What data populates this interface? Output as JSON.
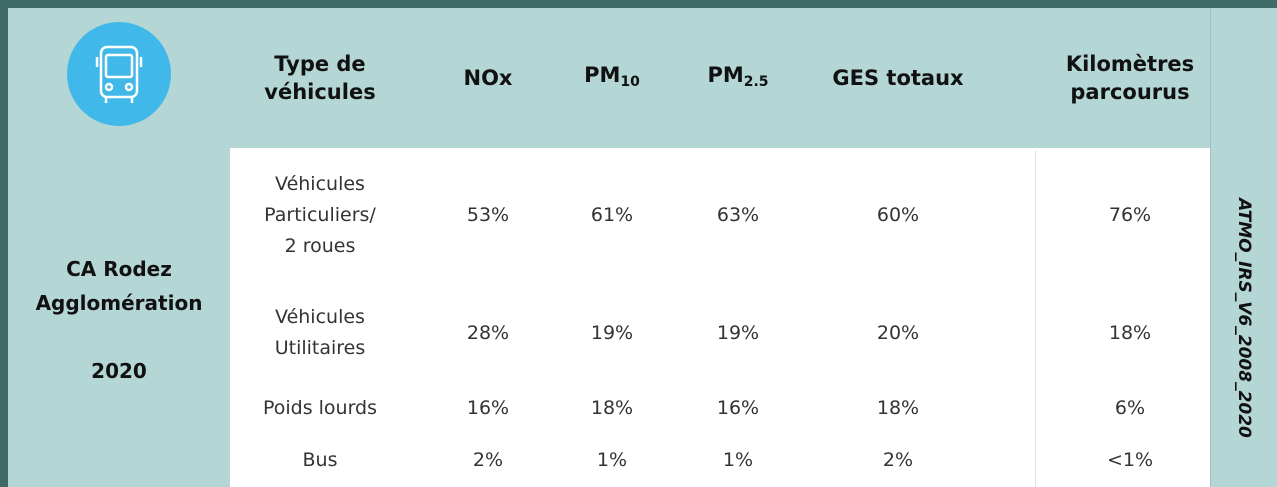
{
  "header": {
    "columns": [
      [
        "Type de",
        "véhicules"
      ],
      "NOx",
      {
        "main": "PM",
        "sub": "10"
      },
      {
        "main": "PM",
        "sub": "2.5"
      },
      "GES totaux",
      [
        "Kilomètres",
        "parcourus"
      ]
    ]
  },
  "region": {
    "lines": [
      "CA Rodez",
      "Agglomération"
    ],
    "year": "2020"
  },
  "source": "ATMO_IRS_V6_2008_2020",
  "table": {
    "rows": [
      [
        [
          "Véhicules",
          "Particuliers/",
          "2 roues"
        ],
        "53%",
        "61%",
        "63%",
        "60%",
        "76%"
      ],
      [
        [
          "Véhicules",
          "Utilitaires"
        ],
        "28%",
        "19%",
        "19%",
        "20%",
        "18%"
      ],
      [
        [
          "Poids lourds"
        ],
        "16%",
        "18%",
        "16%",
        "18%",
        "6%"
      ],
      [
        [
          "Bus"
        ],
        "2%",
        "1%",
        "1%",
        "2%",
        "<1%"
      ]
    ]
  }
}
